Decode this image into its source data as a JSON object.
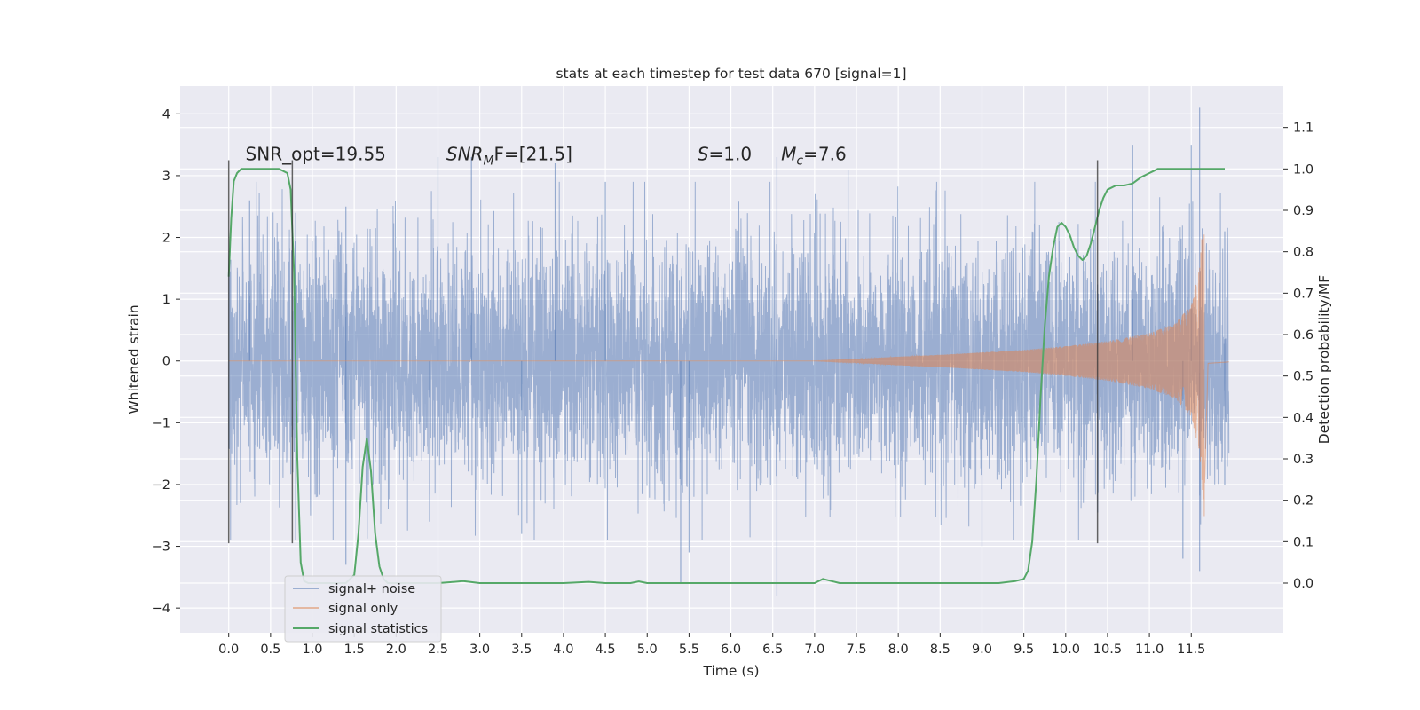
{
  "chart_data": {
    "type": "line",
    "title": "stats at each timestep for test data 670 [signal=1]",
    "xlabel": "Time (s)",
    "ylabel": "Whitened strain",
    "y2label": "Detection probability/MF",
    "xlim": [
      -0.58,
      12.6
    ],
    "ylim": [
      -4.4,
      4.45
    ],
    "y2lim": [
      -0.12,
      1.2
    ],
    "xticks": [
      0.0,
      0.5,
      1.0,
      1.5,
      2.0,
      2.5,
      3.0,
      3.5,
      4.0,
      4.5,
      5.0,
      5.5,
      6.0,
      6.5,
      7.0,
      7.5,
      8.0,
      8.5,
      9.0,
      9.5,
      10.0,
      10.5,
      11.0,
      11.5
    ],
    "xtick_labels": [
      "0.0",
      "0.5",
      "1.0",
      "1.5",
      "2.0",
      "2.5",
      "3.0",
      "3.5",
      "4.0",
      "4.5",
      "5.0",
      "5.5",
      "6.0",
      "6.5",
      "7.0",
      "7.5",
      "8.0",
      "8.5",
      "9.0",
      "9.5",
      "10.0",
      "10.5",
      "11.0",
      "11.5"
    ],
    "yticks": [
      -4,
      -3,
      -2,
      -1,
      0,
      1,
      2,
      3,
      4
    ],
    "ytick_labels": [
      "−4",
      "−3",
      "−2",
      "−1",
      "0",
      "1",
      "2",
      "3",
      "4"
    ],
    "y2ticks": [
      0.0,
      0.1,
      0.2,
      0.3,
      0.4,
      0.5,
      0.6,
      0.7,
      0.8,
      0.9,
      1.0,
      1.1
    ],
    "y2tick_labels": [
      "0.0",
      "0.1",
      "0.2",
      "0.3",
      "0.4",
      "0.5",
      "0.6",
      "0.7",
      "0.8",
      "0.9",
      "1.0",
      "1.1"
    ],
    "grid": true,
    "legend_position": "lower-left",
    "series": [
      {
        "name": "signal+ noise",
        "axis": "left",
        "color": "#4c72b0",
        "description_range": [
          0.0,
          11.95
        ],
        "peaks_above": [
          [
            0.25,
            2.6
          ],
          [
            0.8,
            2.4
          ],
          [
            1.4,
            2.5
          ],
          [
            2.5,
            3.3
          ],
          [
            2.9,
            3.3
          ],
          [
            3.9,
            3.2
          ],
          [
            4.5,
            2.9
          ],
          [
            6.55,
            3.3
          ],
          [
            7.4,
            3.1
          ],
          [
            10.8,
            3.5
          ],
          [
            11.5,
            3.5
          ],
          [
            11.6,
            4.1
          ],
          [
            11.9,
            2.1
          ]
        ],
        "peaks_below": [
          [
            0.8,
            -2.9
          ],
          [
            1.4,
            -3.3
          ],
          [
            2.4,
            -2.6
          ],
          [
            3.5,
            -2.8
          ],
          [
            5.4,
            -3.6
          ],
          [
            5.5,
            -3.1
          ],
          [
            6.55,
            -3.8
          ],
          [
            9.0,
            -3.0
          ],
          [
            11.4,
            -3.2
          ],
          [
            11.6,
            -3.4
          ],
          [
            11.9,
            -2.0
          ]
        ]
      },
      {
        "name": "signal only",
        "axis": "left",
        "color": "#dd8452",
        "x": [
          0.0,
          7.0,
          7.5,
          8.0,
          8.5,
          9.0,
          9.5,
          10.0,
          10.5,
          11.0,
          11.3,
          11.5,
          11.6,
          11.66,
          11.7,
          11.95
        ],
        "envelope": [
          0.0,
          0.0,
          0.03,
          0.07,
          0.1,
          0.14,
          0.18,
          0.24,
          0.32,
          0.45,
          0.6,
          0.9,
          1.5,
          2.6,
          0.05,
          0.02
        ]
      },
      {
        "name": "signal statistics",
        "axis": "right",
        "color": "#55a868",
        "x": [
          0.0,
          0.03,
          0.06,
          0.1,
          0.15,
          0.2,
          0.3,
          0.45,
          0.6,
          0.7,
          0.74,
          0.78,
          0.82,
          0.86,
          0.9,
          0.95,
          1.0,
          1.1,
          1.2,
          1.3,
          1.4,
          1.5,
          1.55,
          1.6,
          1.65,
          1.7,
          1.75,
          1.8,
          1.85,
          1.9,
          2.0,
          2.2,
          2.5,
          2.7,
          2.8,
          3.0,
          3.5,
          4.0,
          4.3,
          4.5,
          4.8,
          4.9,
          5.0,
          5.5,
          6.0,
          6.5,
          6.8,
          7.0,
          7.1,
          7.2,
          7.3,
          7.5,
          8.0,
          8.5,
          9.0,
          9.2,
          9.4,
          9.5,
          9.55,
          9.6,
          9.65,
          9.7,
          9.75,
          9.8,
          9.85,
          9.9,
          9.95,
          10.0,
          10.05,
          10.1,
          10.15,
          10.2,
          10.25,
          10.3,
          10.35,
          10.4,
          10.45,
          10.5,
          10.55,
          10.6,
          10.7,
          10.8,
          10.9,
          11.0,
          11.05,
          11.1,
          11.2,
          11.3,
          11.4,
          11.6,
          11.8,
          11.9
        ],
        "y": [
          0.74,
          0.88,
          0.97,
          0.99,
          1.0,
          1.0,
          1.0,
          1.0,
          1.0,
          0.99,
          0.95,
          0.75,
          0.3,
          0.05,
          0.005,
          0.0,
          0.0,
          0.0,
          0.0,
          0.0,
          0.0,
          0.02,
          0.12,
          0.28,
          0.35,
          0.27,
          0.12,
          0.04,
          0.01,
          0.0,
          0.0,
          0.0,
          0.0,
          0.003,
          0.005,
          0.0,
          0.0,
          0.0,
          0.003,
          0.0,
          0.0,
          0.004,
          0.0,
          0.0,
          0.0,
          0.0,
          0.0,
          0.0,
          0.01,
          0.005,
          0.0,
          0.0,
          0.0,
          0.0,
          0.0,
          0.0,
          0.005,
          0.01,
          0.03,
          0.1,
          0.25,
          0.45,
          0.62,
          0.74,
          0.81,
          0.86,
          0.87,
          0.86,
          0.84,
          0.81,
          0.79,
          0.78,
          0.79,
          0.82,
          0.86,
          0.9,
          0.93,
          0.95,
          0.955,
          0.96,
          0.96,
          0.965,
          0.98,
          0.99,
          0.995,
          1.0,
          1.0,
          1.0,
          1.0,
          1.0,
          1.0,
          1.0
        ]
      }
    ],
    "vlines": [
      {
        "x": 0.0,
        "y": [
          -2.95,
          3.25
        ]
      },
      {
        "x": 0.76,
        "y": [
          -2.95,
          3.25
        ]
      },
      {
        "x": 10.38,
        "y": [
          -2.95,
          3.25
        ]
      }
    ],
    "annotations": [
      {
        "x": 0.2,
        "y": 3.25,
        "text": "SNR_opt=19.55",
        "kind": "plain"
      },
      {
        "x": 2.6,
        "y": 3.25,
        "kind": "snr_mf",
        "main": "SNR",
        "sub": "M",
        "rest": "F=[21.5]"
      },
      {
        "x": 5.6,
        "y": 3.25,
        "kind": "italic_var",
        "main": "S",
        "rest": "=1.0"
      },
      {
        "x": 6.6,
        "y": 3.25,
        "kind": "italic_sub",
        "main": "M",
        "sub": "c",
        "rest": "=7.6"
      }
    ]
  }
}
